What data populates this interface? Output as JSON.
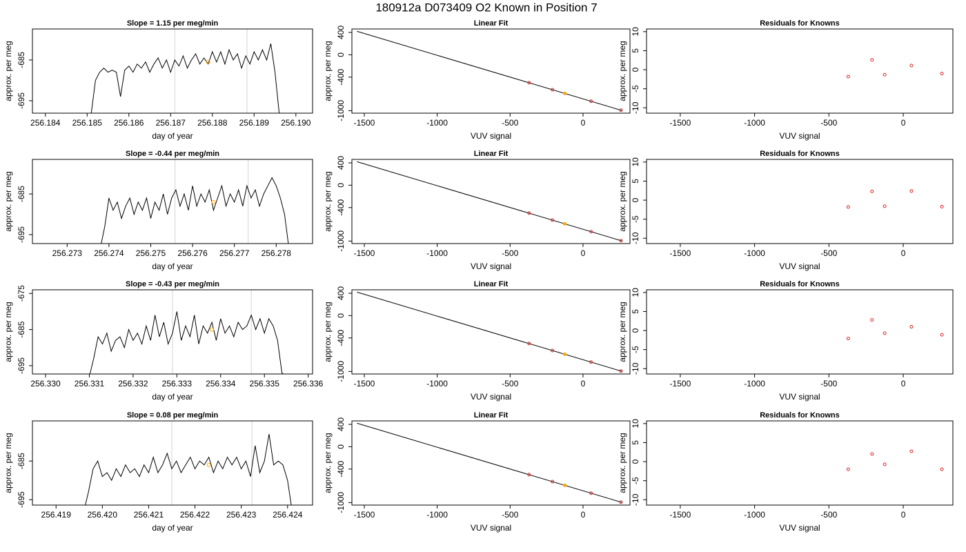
{
  "title": "180912a     D073409   O2 Known in Position  7",
  "chart_data": [
    {
      "type": "line",
      "title": "Slope =  1.15  per meg/min",
      "xlabel": "day of year",
      "ylabel": "approx. per meg",
      "color": "#000000",
      "x": [
        256.1851,
        256.1852,
        256.1853,
        256.1854,
        256.1855,
        256.1856,
        256.1857,
        256.1858,
        256.1859,
        256.186,
        256.1861,
        256.1862,
        256.1863,
        256.1864,
        256.1865,
        256.1866,
        256.1867,
        256.1868,
        256.1869,
        256.187,
        256.1871,
        256.1872,
        256.1873,
        256.1874,
        256.1875,
        256.1876,
        256.1877,
        256.1878,
        256.1879,
        256.188,
        256.1881,
        256.1882,
        256.1883,
        256.1884,
        256.1885,
        256.1886,
        256.1887,
        256.1888,
        256.1889,
        256.189,
        256.1891,
        256.1892,
        256.1893,
        256.1894,
        256.1895,
        256.1896
      ],
      "values": [
        -698,
        -690,
        -688,
        -687,
        -688,
        -687.5,
        -688,
        -694,
        -687.5,
        -686.5,
        -688,
        -686,
        -687,
        -685.5,
        -688,
        -686,
        -684.5,
        -687,
        -685,
        -688,
        -685,
        -686.5,
        -684,
        -687,
        -685,
        -683.5,
        -686,
        -684.5,
        -686,
        -683,
        -685.5,
        -683,
        -686,
        -682.5,
        -685,
        -683.5,
        -687,
        -684,
        -686,
        -683,
        -685,
        -682.5,
        -685,
        -681,
        -688,
        -698
      ],
      "xlim": [
        256.18369,
        256.1904
      ],
      "ylim": [
        -698.05,
        -677.4
      ],
      "xticks": [
        256.184,
        256.185,
        256.186,
        256.187,
        256.188,
        256.189,
        {
          "value": 256.19,
          "label": "256.190"
        }
      ],
      "yticks": [
        -685,
        -695
      ],
      "vlines": [
        256.1871,
        256.18883
      ],
      "vline_color": "#d3d3d3",
      "marker": {
        "x": 256.1879,
        "y": -685.5,
        "color": "#ffa500"
      }
    },
    {
      "type": "scatter",
      "title": "Linear Fit",
      "xlabel": "VUV signal",
      "ylabel": "approx. per meg",
      "x": [
        -370,
        -210,
        -125,
        55,
        260
      ],
      "values": [
        -500,
        -625,
        -692,
        -832,
        -992
      ],
      "colors": [
        "#d62728",
        "#d62728",
        "#ffa500",
        "#d62728",
        "#d62728"
      ],
      "fit_line": {
        "x": [
          -1550,
          270
        ],
        "y": [
          420,
          -1000
        ],
        "color": "#000000"
      },
      "xlim": [
        -1585,
        322
      ],
      "ylim": [
        -1045,
        462
      ],
      "xticks": [
        -1500,
        -1000,
        -500,
        0
      ],
      "yticks": [
        400,
        0,
        -400,
        -1000
      ]
    },
    {
      "type": "scatter",
      "title": "Residuals for Knowns",
      "xlabel": "VUV signal",
      "ylabel": "approx. per meg",
      "x": [
        -370,
        -210,
        -125,
        55,
        260
      ],
      "values": [
        -1.8,
        2.6,
        -1.3,
        1.1,
        -1.0
      ],
      "colors": [
        "#d62728",
        "#d62728",
        "#d62728",
        "#d62728",
        "#d62728"
      ],
      "xlim": [
        -1727,
        334
      ],
      "ylim": [
        -11.4,
        10.7
      ],
      "xticks": [
        -1500,
        -1000,
        -500,
        0
      ],
      "yticks": [
        -10,
        -5,
        0,
        5,
        10
      ]
    },
    {
      "type": "line",
      "title": "Slope =  -0.44  per meg/min",
      "xlabel": "day of year",
      "ylabel": "approx. per meg",
      "color": "#000000",
      "x": [
        256.2738,
        256.2739,
        256.274,
        256.2741,
        256.2742,
        256.2743,
        256.2744,
        256.2745,
        256.2746,
        256.2747,
        256.2748,
        256.2749,
        256.275,
        256.2751,
        256.2752,
        256.2753,
        256.2754,
        256.2755,
        256.2756,
        256.2757,
        256.2758,
        256.2759,
        256.276,
        256.2761,
        256.2762,
        256.2763,
        256.2764,
        256.2765,
        256.2766,
        256.2767,
        256.2768,
        256.2769,
        256.277,
        256.2771,
        256.2772,
        256.2773,
        256.2774,
        256.2775,
        256.2776,
        256.2777,
        256.2778,
        256.2779,
        256.278,
        256.2781,
        256.2782,
        256.2783
      ],
      "values": [
        -698,
        -693,
        -686,
        -689,
        -687,
        -691,
        -688,
        -686,
        -690,
        -687,
        -689,
        -686,
        -691,
        -687,
        -689,
        -685,
        -690,
        -686,
        -684,
        -688,
        -685,
        -689,
        -683,
        -688,
        -685,
        -687,
        -684,
        -689,
        -686,
        -683,
        -688,
        -685,
        -687,
        -684,
        -688,
        -683,
        -686,
        -684,
        -688,
        -685,
        -683,
        -681,
        -683,
        -686,
        -690,
        -698
      ],
      "xlim": [
        256.27217,
        256.27887
      ],
      "ylim": [
        -697.2,
        -676.5
      ],
      "xticks": [
        256.273,
        256.274,
        256.275,
        256.276,
        256.277,
        256.278
      ],
      "yticks": [
        -685,
        -695
      ],
      "vlines": [
        256.27558,
        256.27733
      ],
      "vline_color": "#d3d3d3",
      "marker": {
        "x": 256.2765,
        "y": -687,
        "color": "#ffa500"
      }
    },
    {
      "type": "scatter",
      "title": "Linear Fit",
      "xlabel": "VUV signal",
      "ylabel": "approx. per meg",
      "x": [
        -370,
        -210,
        -125,
        55,
        260
      ],
      "values": [
        -500,
        -625,
        -692,
        -832,
        -992
      ],
      "colors": [
        "#d62728",
        "#d62728",
        "#ffa500",
        "#d62728",
        "#d62728"
      ],
      "fit_line": {
        "x": [
          -1550,
          270
        ],
        "y": [
          420,
          -1000
        ],
        "color": "#000000"
      },
      "xlim": [
        -1585,
        322
      ],
      "ylim": [
        -1045,
        462
      ],
      "xticks": [
        -1500,
        -1000,
        -500,
        0
      ],
      "yticks": [
        400,
        0,
        -400,
        -1000
      ]
    },
    {
      "type": "scatter",
      "title": "Residuals for Knowns",
      "xlabel": "VUV signal",
      "ylabel": "approx. per meg",
      "x": [
        -370,
        -210,
        -125,
        55,
        260
      ],
      "values": [
        -1.8,
        2.3,
        -1.6,
        2.4,
        -1.7
      ],
      "colors": [
        "#d62728",
        "#d62728",
        "#d62728",
        "#d62728",
        "#d62728"
      ],
      "xlim": [
        -1727,
        334
      ],
      "ylim": [
        -11.4,
        10.7
      ],
      "xticks": [
        -1500,
        -1000,
        -500,
        0
      ],
      "yticks": [
        -10,
        -5,
        0,
        5,
        10
      ]
    },
    {
      "type": "line",
      "title": "Slope =  -0.43  per meg/min",
      "xlabel": "day of year",
      "ylabel": "approx. per meg",
      "color": "#000000",
      "x": [
        256.331,
        256.3311,
        256.3312,
        256.3313,
        256.3314,
        256.3315,
        256.3316,
        256.3317,
        256.3318,
        256.3319,
        256.332,
        256.3321,
        256.3322,
        256.3323,
        256.3324,
        256.3325,
        256.3326,
        256.3327,
        256.3328,
        256.3329,
        256.333,
        256.3331,
        256.3332,
        256.3333,
        256.3334,
        256.3335,
        256.3336,
        256.3337,
        256.3338,
        256.3339,
        256.334,
        256.3341,
        256.3342,
        256.3343,
        256.3344,
        256.3345,
        256.3346,
        256.3347,
        256.3348,
        256.3349,
        256.335,
        256.3351,
        256.3352,
        256.3353,
        256.3354,
        256.3355
      ],
      "values": [
        -698,
        -693,
        -687,
        -689,
        -686,
        -691,
        -688,
        -687,
        -690,
        -685,
        -688,
        -686,
        -689,
        -684,
        -688,
        -681,
        -687,
        -683,
        -689,
        -686,
        -680,
        -688,
        -684,
        -687,
        -681,
        -689,
        -684,
        -686,
        -683,
        -688,
        -682,
        -686,
        -684,
        -687,
        -683,
        -685,
        -684,
        -681,
        -685,
        -682,
        -686,
        -682,
        -684,
        -688,
        -697,
        -698
      ],
      "xlim": [
        256.3297,
        256.3361
      ],
      "ylim": [
        -697.3,
        -674
      ],
      "xticks": [
        {
          "value": 256.33,
          "label": "256.330"
        },
        256.331,
        256.332,
        256.333,
        256.334,
        256.335,
        256.336
      ],
      "yticks": [
        -675,
        -685,
        -695
      ],
      "vlines": [
        256.3329,
        256.3347
      ],
      "vline_color": "#d3d3d3",
      "marker": {
        "x": 256.3338,
        "y": -685,
        "color": "#ffa500"
      }
    },
    {
      "type": "scatter",
      "title": "Linear Fit",
      "xlabel": "VUV signal",
      "ylabel": "approx. per meg",
      "x": [
        -370,
        -210,
        -125,
        55,
        260
      ],
      "values": [
        -500,
        -625,
        -692,
        -832,
        -992
      ],
      "colors": [
        "#d62728",
        "#d62728",
        "#ffa500",
        "#d62728",
        "#d62728"
      ],
      "fit_line": {
        "x": [
          -1550,
          270
        ],
        "y": [
          420,
          -1000
        ],
        "color": "#000000"
      },
      "xlim": [
        -1585,
        322
      ],
      "ylim": [
        -1045,
        462
      ],
      "xticks": [
        -1500,
        -1000,
        -500,
        0
      ],
      "yticks": [
        400,
        0,
        -400,
        -1000
      ]
    },
    {
      "type": "scatter",
      "title": "Residuals for Knowns",
      "xlabel": "VUV signal",
      "ylabel": "approx. per meg",
      "x": [
        -370,
        -210,
        -125,
        55,
        260
      ],
      "values": [
        -2.1,
        2.8,
        -0.7,
        1.0,
        -1.1
      ],
      "colors": [
        "#d62728",
        "#d62728",
        "#d62728",
        "#d62728",
        "#d62728"
      ],
      "xlim": [
        -1727,
        334
      ],
      "ylim": [
        -11.4,
        10.7
      ],
      "xticks": [
        -1500,
        -1000,
        -500,
        0
      ],
      "yticks": [
        -10,
        -5,
        0,
        5,
        10
      ]
    },
    {
      "type": "line",
      "title": "Slope =  0.08  per meg/min",
      "xlabel": "day of year",
      "ylabel": "approx. per meg",
      "color": "#000000",
      "x": [
        256.4196,
        256.4197,
        256.4198,
        256.4199,
        256.42,
        256.4201,
        256.4202,
        256.4203,
        256.4204,
        256.4205,
        256.4206,
        256.4207,
        256.4208,
        256.4209,
        256.421,
        256.4211,
        256.4212,
        256.4213,
        256.4214,
        256.4215,
        256.4216,
        256.4217,
        256.4218,
        256.4219,
        256.422,
        256.4221,
        256.4222,
        256.4223,
        256.4224,
        256.4225,
        256.4226,
        256.4227,
        256.4228,
        256.4229,
        256.423,
        256.4231,
        256.4232,
        256.4233,
        256.4234,
        256.4235,
        256.4236,
        256.4237,
        256.4238,
        256.4239,
        256.424,
        256.4241
      ],
      "values": [
        -698,
        -693,
        -687,
        -685,
        -689,
        -688,
        -690,
        -687,
        -689,
        -686,
        -688,
        -687,
        -689,
        -686,
        -688,
        -684,
        -688,
        -686,
        -683,
        -687,
        -685,
        -688,
        -686,
        -684,
        -687,
        -685,
        -686,
        -684,
        -688,
        -685,
        -687,
        -684,
        -686,
        -684,
        -687,
        -685,
        -689,
        -681,
        -688,
        -685,
        -678,
        -686,
        -685,
        -686,
        -690,
        -698
      ],
      "xlim": [
        256.41849,
        256.42454
      ],
      "ylim": [
        -696.4,
        -674.6
      ],
      "xticks": [
        256.419,
        {
          "value": 256.42,
          "label": "256.420"
        },
        256.421,
        256.422,
        256.423,
        256.424
      ],
      "yticks": [
        -685,
        -695
      ],
      "vlines": [
        256.4215,
        256.42323
      ],
      "vline_color": "#d3d3d3",
      "marker": {
        "x": 256.4223,
        "y": -686,
        "color": "#ffa500"
      }
    },
    {
      "type": "scatter",
      "title": "Linear Fit",
      "xlabel": "VUV signal",
      "ylabel": "approx. per meg",
      "x": [
        -370,
        -210,
        -125,
        55,
        260
      ],
      "values": [
        -500,
        -625,
        -692,
        -832,
        -992
      ],
      "colors": [
        "#d62728",
        "#d62728",
        "#ffa500",
        "#d62728",
        "#d62728"
      ],
      "fit_line": {
        "x": [
          -1550,
          270
        ],
        "y": [
          420,
          -1000
        ],
        "color": "#000000"
      },
      "xlim": [
        -1585,
        322
      ],
      "ylim": [
        -1045,
        462
      ],
      "xticks": [
        -1500,
        -1000,
        -500,
        0
      ],
      "yticks": [
        400,
        0,
        -400,
        -1000
      ]
    },
    {
      "type": "scatter",
      "title": "Residuals for Knowns",
      "xlabel": "VUV signal",
      "ylabel": "approx. per meg",
      "x": [
        -370,
        -210,
        -125,
        55,
        260
      ],
      "values": [
        -2.0,
        2.0,
        -0.7,
        2.7,
        -2.0
      ],
      "colors": [
        "#d62728",
        "#d62728",
        "#d62728",
        "#d62728",
        "#d62728"
      ],
      "xlim": [
        -1727,
        334
      ],
      "ylim": [
        -11.4,
        10.7
      ],
      "xticks": [
        -1500,
        -1000,
        -500,
        0
      ],
      "yticks": [
        -10,
        -5,
        0,
        5,
        10
      ]
    }
  ]
}
